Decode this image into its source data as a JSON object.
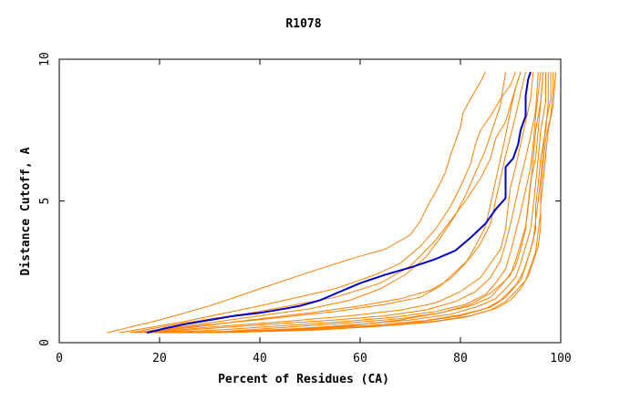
{
  "chart_data": {
    "type": "line",
    "title": "R1078",
    "xlabel": "Percent of Residues (CA)",
    "ylabel": "Distance Cutoff, A",
    "xlim": [
      0,
      100
    ],
    "ylim": [
      0,
      10
    ],
    "x_ticks": [
      "0",
      "20",
      "40",
      "60",
      "80",
      "100"
    ],
    "y_ticks": [
      "0",
      "5",
      "10"
    ],
    "grid": false,
    "legend": "none",
    "colors": {
      "highlight": "#0000cc",
      "others": "#ff8000",
      "frame": "#000000"
    },
    "highlighted": {
      "points": [
        [
          17.5,
          0.35
        ],
        [
          21,
          0.5
        ],
        [
          25,
          0.65
        ],
        [
          30,
          0.8
        ],
        [
          35,
          0.95
        ],
        [
          40,
          1.05
        ],
        [
          45,
          1.2
        ],
        [
          48,
          1.3
        ],
        [
          52,
          1.5
        ],
        [
          56,
          1.8
        ],
        [
          60,
          2.1
        ],
        [
          65,
          2.4
        ],
        [
          70,
          2.65
        ],
        [
          75,
          2.95
        ],
        [
          79,
          3.25
        ],
        [
          82,
          3.7
        ],
        [
          85,
          4.2
        ],
        [
          87,
          4.7
        ],
        [
          89,
          5.1
        ],
        [
          89,
          5.5
        ],
        [
          89,
          6.2
        ],
        [
          90.5,
          6.5
        ],
        [
          91.5,
          7.0
        ],
        [
          92,
          7.5
        ],
        [
          93,
          8.0
        ],
        [
          93,
          8.7
        ],
        [
          93.5,
          9.3
        ],
        [
          94,
          9.55
        ]
      ]
    },
    "series": [
      {
        "points": [
          [
            9.5,
            0.35
          ],
          [
            20,
            0.8
          ],
          [
            30,
            1.3
          ],
          [
            40,
            1.9
          ],
          [
            50,
            2.5
          ],
          [
            59,
            3.0
          ],
          [
            65,
            3.3
          ],
          [
            70,
            3.8
          ],
          [
            72,
            4.3
          ],
          [
            74,
            5.0
          ],
          [
            75,
            5.3
          ],
          [
            77,
            6.0
          ],
          [
            78,
            6.6
          ],
          [
            79,
            7.1
          ],
          [
            80,
            7.6
          ],
          [
            80.5,
            8.1
          ],
          [
            82,
            8.6
          ],
          [
            84,
            9.2
          ],
          [
            85,
            9.55
          ]
        ]
      },
      {
        "points": [
          [
            12,
            0.35
          ],
          [
            25,
            0.75
          ],
          [
            40,
            1.3
          ],
          [
            55,
            1.9
          ],
          [
            63,
            2.4
          ],
          [
            68,
            2.8
          ],
          [
            72,
            3.4
          ],
          [
            75,
            4.0
          ],
          [
            78,
            4.8
          ],
          [
            80,
            5.5
          ],
          [
            82,
            6.3
          ],
          [
            83,
            7.0
          ],
          [
            84,
            7.5
          ],
          [
            86,
            8.0
          ],
          [
            88,
            8.6
          ],
          [
            90,
            9.1
          ],
          [
            91,
            9.55
          ]
        ]
      },
      {
        "points": [
          [
            14,
            0.35
          ],
          [
            25,
            0.7
          ],
          [
            40,
            1.1
          ],
          [
            55,
            1.6
          ],
          [
            64,
            2.1
          ],
          [
            70,
            2.7
          ],
          [
            75,
            3.6
          ],
          [
            78,
            4.3
          ],
          [
            81,
            5.0
          ],
          [
            84,
            5.8
          ],
          [
            86,
            6.5
          ],
          [
            87,
            7.2
          ],
          [
            89,
            7.8
          ],
          [
            90,
            8.4
          ],
          [
            91,
            9.0
          ],
          [
            92,
            9.55
          ]
        ]
      },
      {
        "points": [
          [
            16,
            0.35
          ],
          [
            28,
            0.6
          ],
          [
            42,
            0.85
          ],
          [
            55,
            1.1
          ],
          [
            65,
            1.35
          ],
          [
            72,
            1.6
          ],
          [
            76,
            2.0
          ],
          [
            79,
            2.5
          ],
          [
            82,
            3.0
          ],
          [
            84,
            3.5
          ],
          [
            86,
            4.2
          ],
          [
            87,
            5.0
          ],
          [
            88,
            5.8
          ],
          [
            89,
            6.6
          ],
          [
            90,
            7.3
          ],
          [
            91,
            8.0
          ],
          [
            92,
            8.8
          ],
          [
            93,
            9.55
          ]
        ]
      },
      {
        "points": [
          [
            18,
            0.35
          ],
          [
            30,
            0.55
          ],
          [
            45,
            0.75
          ],
          [
            58,
            0.95
          ],
          [
            68,
            1.15
          ],
          [
            75,
            1.4
          ],
          [
            80,
            1.8
          ],
          [
            84,
            2.3
          ],
          [
            86,
            2.8
          ],
          [
            88,
            3.3
          ],
          [
            89,
            4.0
          ],
          [
            89.5,
            4.8
          ],
          [
            90,
            5.5
          ],
          [
            91,
            6.2
          ],
          [
            92,
            7.0
          ],
          [
            93,
            7.8
          ],
          [
            94,
            8.6
          ],
          [
            94.5,
            9.55
          ]
        ]
      },
      {
        "points": [
          [
            19,
            0.35
          ],
          [
            30,
            0.5
          ],
          [
            42,
            0.65
          ],
          [
            55,
            0.8
          ],
          [
            65,
            0.95
          ],
          [
            73,
            1.15
          ],
          [
            79,
            1.45
          ],
          [
            83,
            1.8
          ],
          [
            86,
            2.3
          ],
          [
            88,
            2.9
          ],
          [
            89,
            3.5
          ],
          [
            90,
            4.2
          ],
          [
            91,
            5.0
          ],
          [
            92,
            5.8
          ],
          [
            93,
            6.5
          ],
          [
            94,
            7.3
          ],
          [
            95,
            8.2
          ],
          [
            95.5,
            9.55
          ]
        ]
      },
      {
        "points": [
          [
            20,
            0.35
          ],
          [
            32,
            0.45
          ],
          [
            45,
            0.6
          ],
          [
            57,
            0.75
          ],
          [
            67,
            0.9
          ],
          [
            75,
            1.1
          ],
          [
            81,
            1.35
          ],
          [
            85,
            1.7
          ],
          [
            87,
            2.1
          ],
          [
            89,
            2.6
          ],
          [
            90,
            3.2
          ],
          [
            91,
            3.9
          ],
          [
            92,
            4.6
          ],
          [
            93,
            5.4
          ],
          [
            94,
            6.2
          ],
          [
            94.5,
            7.0
          ],
          [
            95,
            8.0
          ],
          [
            96,
            9.55
          ]
        ]
      },
      {
        "points": [
          [
            21,
            0.35
          ],
          [
            33,
            0.4
          ],
          [
            46,
            0.55
          ],
          [
            58,
            0.7
          ],
          [
            68,
            0.85
          ],
          [
            76,
            1.05
          ],
          [
            82,
            1.3
          ],
          [
            86,
            1.6
          ],
          [
            88,
            2.0
          ],
          [
            90,
            2.4
          ],
          [
            91,
            2.9
          ],
          [
            92,
            3.5
          ],
          [
            93,
            4.1
          ],
          [
            93.5,
            4.9
          ],
          [
            94,
            5.7
          ],
          [
            95,
            6.5
          ],
          [
            95.5,
            7.5
          ],
          [
            96,
            8.5
          ],
          [
            96.5,
            9.55
          ]
        ]
      },
      {
        "points": [
          [
            22,
            0.35
          ],
          [
            35,
            0.4
          ],
          [
            48,
            0.5
          ],
          [
            60,
            0.65
          ],
          [
            70,
            0.8
          ],
          [
            78,
            1.0
          ],
          [
            83,
            1.25
          ],
          [
            87,
            1.55
          ],
          [
            89,
            1.9
          ],
          [
            91,
            2.3
          ],
          [
            92,
            2.8
          ],
          [
            93,
            3.4
          ],
          [
            94,
            4.0
          ],
          [
            94.5,
            4.8
          ],
          [
            95,
            5.6
          ],
          [
            95.5,
            6.5
          ],
          [
            96,
            7.5
          ],
          [
            97,
            8.5
          ],
          [
            97,
            9.55
          ]
        ]
      },
      {
        "points": [
          [
            23,
            0.35
          ],
          [
            36,
            0.38
          ],
          [
            50,
            0.48
          ],
          [
            62,
            0.6
          ],
          [
            72,
            0.75
          ],
          [
            80,
            0.95
          ],
          [
            85,
            1.2
          ],
          [
            88,
            1.5
          ],
          [
            90,
            1.85
          ],
          [
            92,
            2.2
          ],
          [
            93,
            2.7
          ],
          [
            94,
            3.3
          ],
          [
            95,
            4.0
          ],
          [
            95,
            4.8
          ],
          [
            95.5,
            5.6
          ],
          [
            96,
            6.5
          ],
          [
            97,
            7.5
          ],
          [
            97.5,
            8.5
          ],
          [
            97.5,
            9.55
          ]
        ]
      },
      {
        "points": [
          [
            24,
            0.35
          ],
          [
            37,
            0.4
          ],
          [
            51,
            0.5
          ],
          [
            63,
            0.62
          ],
          [
            73,
            0.78
          ],
          [
            80,
            0.98
          ],
          [
            86,
            1.25
          ],
          [
            89,
            1.6
          ],
          [
            91,
            2.0
          ],
          [
            92.5,
            2.5
          ],
          [
            93.5,
            3.0
          ],
          [
            94.5,
            3.6
          ],
          [
            95,
            4.3
          ],
          [
            95.5,
            5.0
          ],
          [
            96,
            5.8
          ],
          [
            96.5,
            6.8
          ],
          [
            97,
            7.7
          ],
          [
            98,
            8.6
          ],
          [
            98,
            9.55
          ]
        ]
      },
      {
        "points": [
          [
            25,
            0.35
          ],
          [
            38,
            0.38
          ],
          [
            52,
            0.45
          ],
          [
            64,
            0.58
          ],
          [
            74,
            0.72
          ],
          [
            81,
            0.9
          ],
          [
            86,
            1.15
          ],
          [
            89,
            1.45
          ],
          [
            91,
            1.8
          ],
          [
            93,
            2.2
          ],
          [
            94,
            2.7
          ],
          [
            95,
            3.2
          ],
          [
            95.5,
            3.9
          ],
          [
            96,
            4.6
          ],
          [
            96,
            5.4
          ],
          [
            96.5,
            6.3
          ],
          [
            97,
            7.2
          ],
          [
            98,
            8.0
          ],
          [
            98.5,
            9.0
          ],
          [
            98.5,
            9.55
          ]
        ]
      },
      {
        "points": [
          [
            26,
            0.35
          ],
          [
            40,
            0.4
          ],
          [
            53,
            0.48
          ],
          [
            65,
            0.6
          ],
          [
            75,
            0.76
          ],
          [
            82,
            0.95
          ],
          [
            87,
            1.2
          ],
          [
            90,
            1.5
          ],
          [
            92,
            1.9
          ],
          [
            93.5,
            2.35
          ],
          [
            94.5,
            2.85
          ],
          [
            95.5,
            3.4
          ],
          [
            96,
            4.1
          ],
          [
            96,
            4.9
          ],
          [
            96.5,
            5.7
          ],
          [
            97,
            6.6
          ],
          [
            97.5,
            7.5
          ],
          [
            98.5,
            8.4
          ],
          [
            99,
            9.55
          ]
        ]
      },
      {
        "points": [
          [
            30,
            0.35
          ],
          [
            45,
            0.45
          ],
          [
            58,
            0.6
          ],
          [
            68,
            0.8
          ],
          [
            76,
            1.05
          ],
          [
            82,
            1.35
          ],
          [
            86,
            1.75
          ],
          [
            89,
            2.2
          ],
          [
            91,
            2.7
          ],
          [
            92,
            3.3
          ],
          [
            93,
            4.0
          ],
          [
            93.5,
            4.8
          ],
          [
            94,
            5.6
          ],
          [
            94.5,
            6.5
          ],
          [
            95,
            7.5
          ],
          [
            96,
            8.5
          ],
          [
            96.5,
            9.55
          ]
        ]
      },
      {
        "points": [
          [
            17,
            0.35
          ],
          [
            27,
            0.55
          ],
          [
            38,
            0.8
          ],
          [
            50,
            1.05
          ],
          [
            60,
            1.3
          ],
          [
            68,
            1.55
          ],
          [
            74,
            1.85
          ],
          [
            78,
            2.25
          ],
          [
            81,
            2.8
          ],
          [
            83,
            3.4
          ],
          [
            85,
            4.1
          ],
          [
            86,
            4.9
          ],
          [
            87,
            5.7
          ],
          [
            88,
            6.5
          ],
          [
            89,
            7.3
          ],
          [
            90,
            8.2
          ],
          [
            91,
            9.0
          ],
          [
            92,
            9.55
          ]
        ]
      },
      {
        "points": [
          [
            15,
            0.35
          ],
          [
            26,
            0.6
          ],
          [
            38,
            0.9
          ],
          [
            50,
            1.2
          ],
          [
            58,
            1.5
          ],
          [
            64,
            1.9
          ],
          [
            69,
            2.4
          ],
          [
            73,
            3.0
          ],
          [
            76,
            3.7
          ],
          [
            79,
            4.5
          ],
          [
            81,
            5.2
          ],
          [
            83,
            6.0
          ],
          [
            85,
            6.8
          ],
          [
            86.5,
            7.6
          ],
          [
            88,
            8.4
          ],
          [
            89,
            9.55
          ]
        ]
      }
    ]
  }
}
